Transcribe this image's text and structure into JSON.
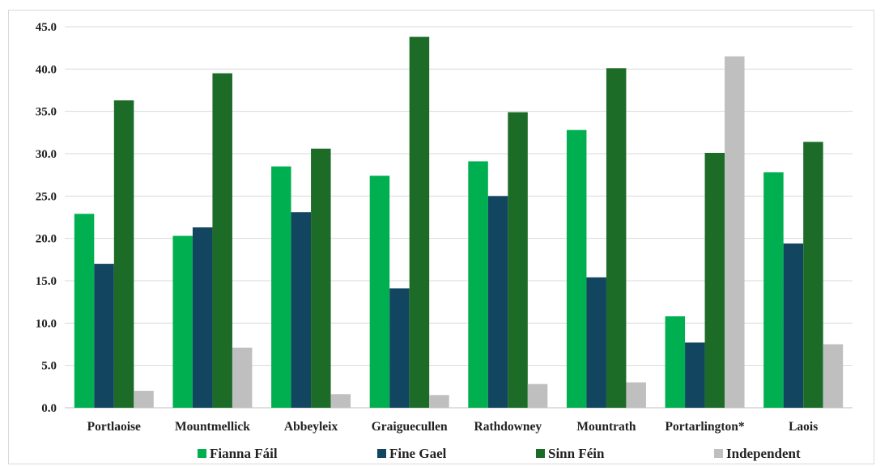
{
  "chart_data": {
    "type": "bar",
    "title": "",
    "xlabel": "",
    "ylabel": "",
    "ylim": [
      0,
      45
    ],
    "yticks": [
      "0.0",
      "5.0",
      "10.0",
      "15.0",
      "20.0",
      "25.0",
      "30.0",
      "35.0",
      "40.0",
      "45.0"
    ],
    "grid": true,
    "legend_position": "bottom",
    "categories": [
      "Portlaoise",
      "Mountmellick",
      "Abbeyleix",
      "Graiguecullen",
      "Rathdowney",
      "Mountrath",
      "Portarlington*",
      "Laois"
    ],
    "series": [
      {
        "name": "Fianna Fáil",
        "color": "#00b050",
        "values": [
          22.9,
          20.3,
          28.5,
          27.4,
          29.1,
          32.8,
          10.8,
          27.8
        ]
      },
      {
        "name": "Fine Gael",
        "color": "#124660",
        "values": [
          17.0,
          21.3,
          23.1,
          14.1,
          25.0,
          15.4,
          7.7,
          19.4
        ]
      },
      {
        "name": "Sinn Féin",
        "color": "#1c6b27",
        "values": [
          36.3,
          39.5,
          30.6,
          43.8,
          34.9,
          40.1,
          30.1,
          31.4
        ]
      },
      {
        "name": "Independent",
        "color": "#bfbfbf",
        "values": [
          2.0,
          7.1,
          1.6,
          1.5,
          2.8,
          3.0,
          41.5,
          7.5
        ]
      }
    ]
  }
}
